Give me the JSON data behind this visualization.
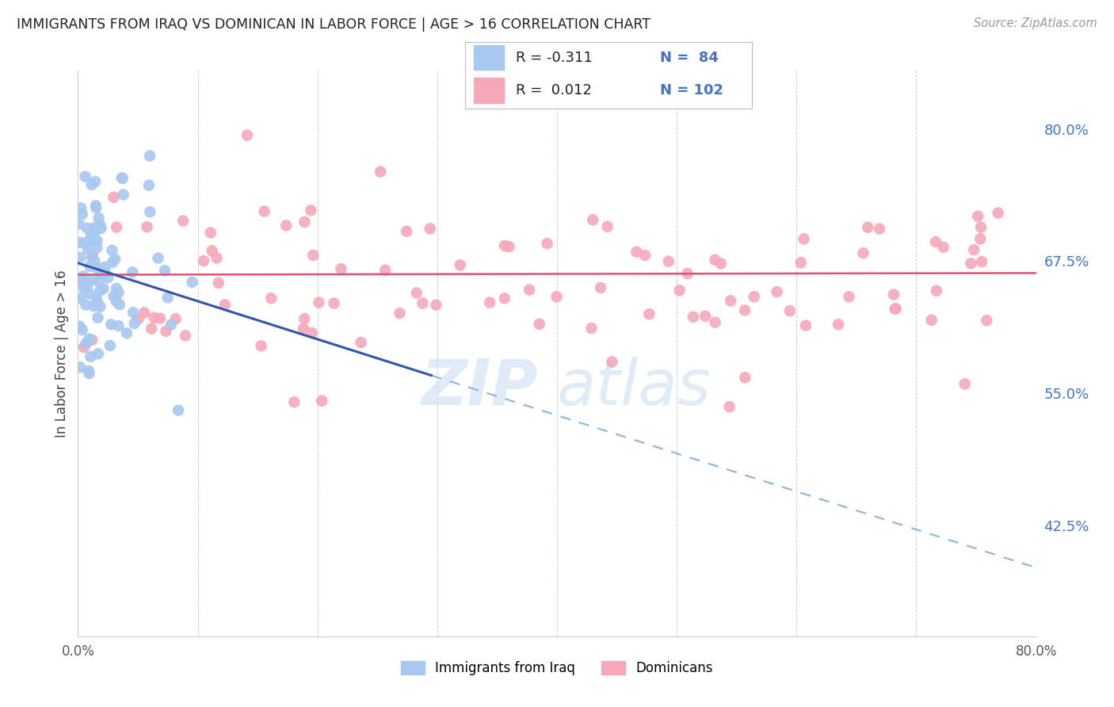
{
  "title": "IMMIGRANTS FROM IRAQ VS DOMINICAN IN LABOR FORCE | AGE > 16 CORRELATION CHART",
  "source": "Source: ZipAtlas.com",
  "ylabel": "In Labor Force | Age > 16",
  "ytick_labels": [
    "80.0%",
    "67.5%",
    "55.0%",
    "42.5%"
  ],
  "ytick_values": [
    0.8,
    0.675,
    0.55,
    0.425
  ],
  "xmin": 0.0,
  "xmax": 0.8,
  "ymin": 0.32,
  "ymax": 0.855,
  "legend_iraq_r": "-0.311",
  "legend_iraq_n": "84",
  "legend_dom_r": "0.012",
  "legend_dom_n": "102",
  "iraq_color": "#A8C8F0",
  "dom_color": "#F5A8B8",
  "iraq_line_color": "#3355AA",
  "dom_line_color": "#E05070",
  "dashed_line_color": "#90B8E0",
  "watermark_zip": "ZIP",
  "watermark_atlas": "atlas"
}
